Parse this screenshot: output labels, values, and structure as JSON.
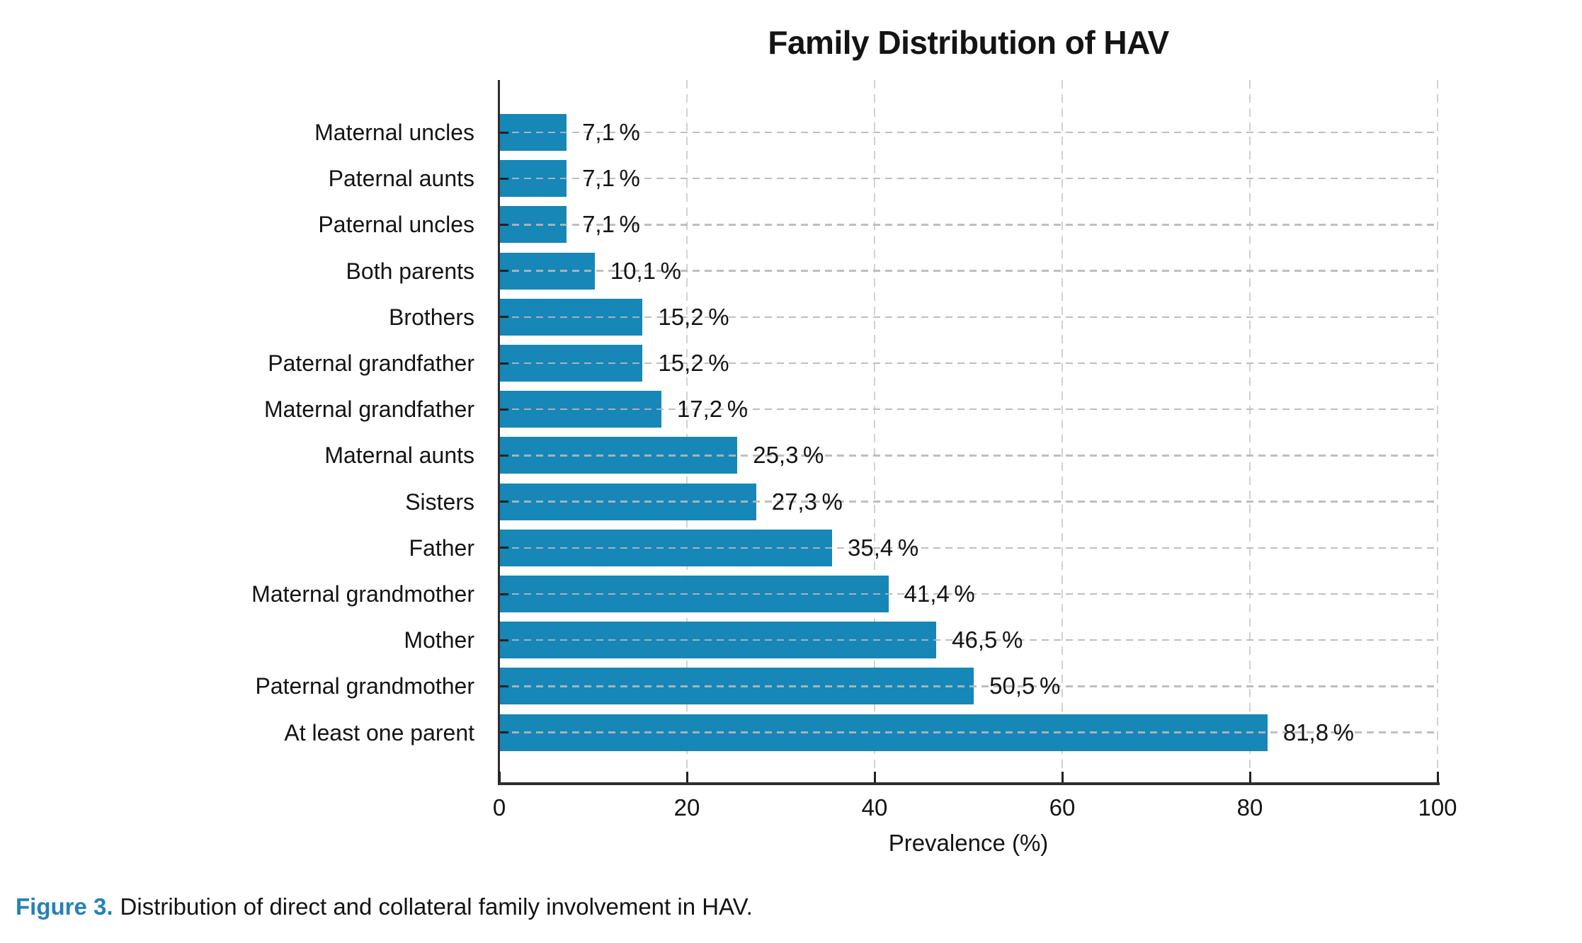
{
  "title": "Family Distribution of HAV",
  "chart_data": {
    "type": "bar",
    "orientation": "horizontal",
    "title": "Family Distribution of HAV",
    "xlabel": "Prevalence (%)",
    "xlim": [
      0,
      100
    ],
    "x_ticks": [
      0,
      20,
      40,
      60,
      80,
      100
    ],
    "x_tick_labels": [
      "0",
      "20",
      "40",
      "60",
      "80",
      "100"
    ],
    "grid": "dashed",
    "legend": "none",
    "bar_color": "#0d82b4",
    "categories_top_to_bottom": [
      "Maternal uncles",
      "Paternal aunts",
      "Paternal uncles",
      "Both parents",
      "Brothers",
      "Paternal grandfather",
      "Maternal grandfather",
      "Maternal aunts",
      "Sisters",
      "Father",
      "Maternal grandmother",
      "Mother",
      "Paternal grandmother",
      "At least one parent"
    ],
    "values": [
      7.1,
      7.1,
      7.1,
      10.1,
      15.2,
      15.2,
      17.2,
      25.3,
      27.3,
      35.4,
      41.4,
      46.5,
      50.5,
      81.8
    ],
    "value_labels": [
      "7,1 %",
      "7,1 %",
      "7,1 %",
      "10,1 %",
      "15,2 %",
      "15,2 %",
      "17,2 %",
      "25,3 %",
      "27,3 %",
      "35,4 %",
      "41,4 %",
      "46,5 %",
      "50,5 %",
      "81,8 %"
    ]
  },
  "caption": {
    "label": "Figure 3.",
    "text": "Distribution of direct and collateral family involvement in HAV."
  }
}
